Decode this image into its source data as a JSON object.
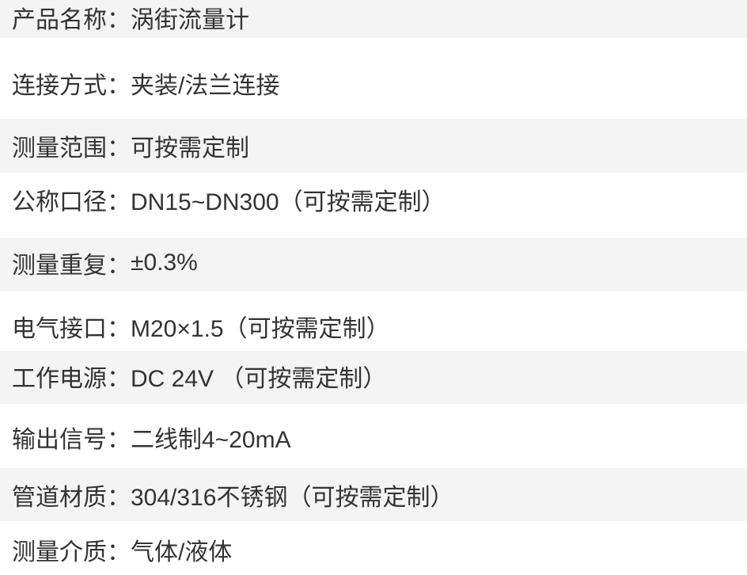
{
  "specs": {
    "separator": "：",
    "rows": [
      {
        "label": "产品名称",
        "value": "涡街流量计"
      },
      {
        "label": "连接方式",
        "value": "夹装/法兰连接"
      },
      {
        "label": "测量范围",
        "value": "可按需定制"
      },
      {
        "label": "公称口径",
        "value": "DN15~DN300（可按需定制）"
      },
      {
        "label": "测量重复",
        "value": "±0.3%"
      },
      {
        "label": "电气接口",
        "value": "M20×1.5（可按需定制）"
      },
      {
        "label": "工作电源",
        "value": "DC 24V （可按需定制）"
      },
      {
        "label": "输出信号",
        "value": "二线制4~20mA"
      },
      {
        "label": "管道材质",
        "value": "304/316不锈钢（可按需定制）"
      },
      {
        "label": "测量介质",
        "value": "气体/液体"
      }
    ]
  },
  "colors": {
    "row_alt_bg": "#f4f4f4",
    "row_bg": "#ffffff",
    "text": "#333333"
  }
}
